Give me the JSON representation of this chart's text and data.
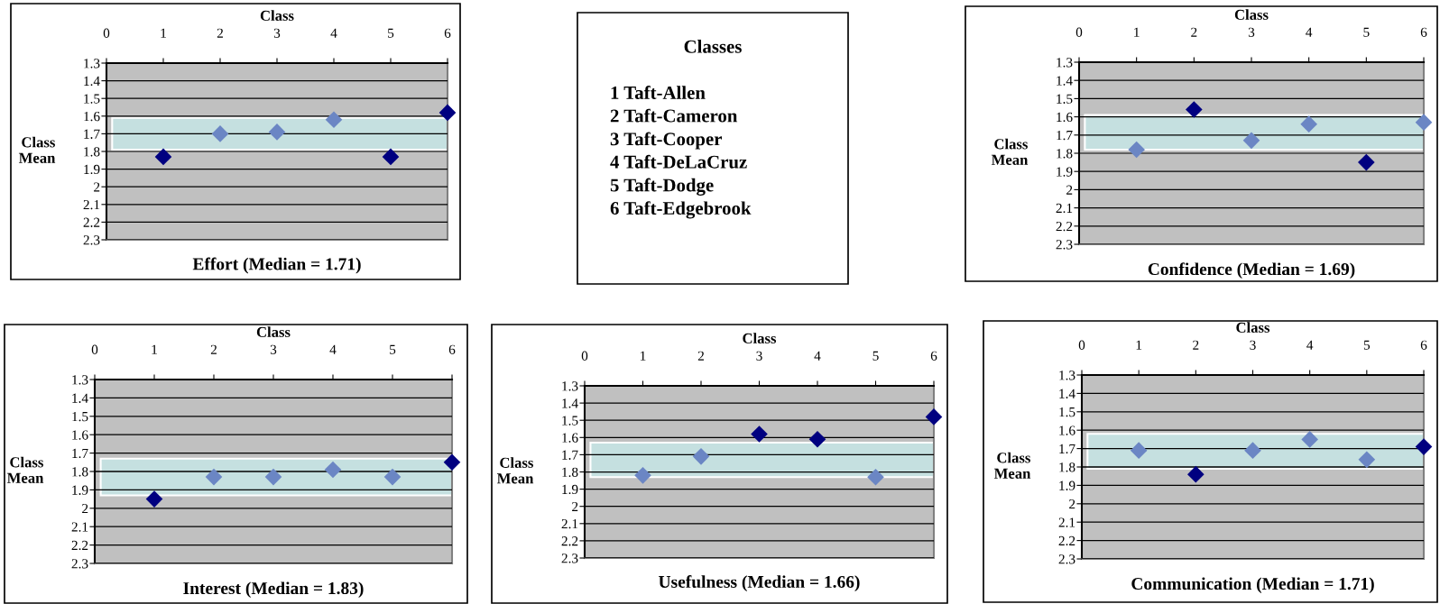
{
  "chart_data": [
    {
      "type": "scatter",
      "title": "Effort (Median = 1.71)",
      "xlabel": "Class",
      "ylabel": "Class\nMean",
      "x": [
        1,
        2,
        3,
        4,
        5,
        6
      ],
      "values": [
        1.83,
        1.7,
        1.69,
        1.62,
        1.83,
        1.58
      ],
      "colors": [
        "#000080",
        "#6b86c4",
        "#6b86c4",
        "#6b86c4",
        "#000080",
        "#000080"
      ],
      "xlim": [
        0,
        6
      ],
      "xticks": [
        0,
        1,
        2,
        3,
        4,
        5,
        6
      ],
      "ylim": [
        2.3,
        1.3
      ],
      "yticks": [
        1.3,
        1.4,
        1.5,
        1.6,
        1.7,
        1.8,
        1.9,
        2,
        2.1,
        2.2,
        2.3
      ],
      "grid": "y",
      "marker": "diamond",
      "bands": [
        {
          "axis": "y",
          "from": 1.61,
          "to": 1.79,
          "color": "#c5e0e0"
        }
      ]
    },
    {
      "type": "other",
      "title": "Classes",
      "annotations": [
        "1 Taft-Allen",
        "2 Taft-Cameron",
        "3 Taft-Cooper",
        "4 Taft-DeLaCruz",
        "5 Taft-Dodge",
        "6 Taft-Edgebrook"
      ]
    },
    {
      "type": "scatter",
      "title": "Confidence (Median = 1.69)",
      "xlabel": "Class",
      "ylabel": "Class\nMean",
      "x": [
        1,
        2,
        3,
        4,
        5,
        6
      ],
      "values": [
        1.78,
        1.56,
        1.73,
        1.64,
        1.85,
        1.63
      ],
      "colors": [
        "#6b86c4",
        "#000080",
        "#6b86c4",
        "#6b86c4",
        "#000080",
        "#6b86c4"
      ],
      "xlim": [
        0,
        6
      ],
      "xticks": [
        0,
        1,
        2,
        3,
        4,
        5,
        6
      ],
      "ylim": [
        2.3,
        1.3
      ],
      "yticks": [
        1.3,
        1.4,
        1.5,
        1.6,
        1.7,
        1.8,
        1.9,
        2,
        2.1,
        2.2,
        2.3
      ],
      "grid": "y",
      "marker": "diamond",
      "bands": [
        {
          "axis": "y",
          "from": 1.59,
          "to": 1.78,
          "color": "#c5e0e0"
        }
      ]
    },
    {
      "type": "scatter",
      "title": "Interest (Median = 1.83)",
      "xlabel": "Class",
      "ylabel": "Class\nMean",
      "x": [
        1,
        2,
        3,
        4,
        5,
        6
      ],
      "values": [
        1.95,
        1.83,
        1.83,
        1.79,
        1.83,
        1.75
      ],
      "colors": [
        "#000080",
        "#6b86c4",
        "#6b86c4",
        "#6b86c4",
        "#6b86c4",
        "#000080"
      ],
      "xlim": [
        0,
        6
      ],
      "xticks": [
        0,
        1,
        2,
        3,
        4,
        5,
        6
      ],
      "ylim": [
        2.3,
        1.3
      ],
      "yticks": [
        1.3,
        1.4,
        1.5,
        1.6,
        1.7,
        1.8,
        1.9,
        2,
        2.1,
        2.2,
        2.3
      ],
      "grid": "y",
      "marker": "diamond",
      "bands": [
        {
          "axis": "y",
          "from": 1.73,
          "to": 1.93,
          "color": "#c5e0e0"
        }
      ]
    },
    {
      "type": "scatter",
      "title": "Usefulness (Median = 1.66)",
      "xlabel": "Class",
      "ylabel": "Class\nMean",
      "x": [
        1,
        2,
        3,
        4,
        5,
        6
      ],
      "values": [
        1.82,
        1.71,
        1.58,
        1.61,
        1.83,
        1.48
      ],
      "colors": [
        "#6b86c4",
        "#6b86c4",
        "#000080",
        "#000080",
        "#6b86c4",
        "#000080"
      ],
      "xlim": [
        0,
        6
      ],
      "xticks": [
        0,
        1,
        2,
        3,
        4,
        5,
        6
      ],
      "ylim": [
        2.3,
        1.3
      ],
      "yticks": [
        1.3,
        1.4,
        1.5,
        1.6,
        1.7,
        1.8,
        1.9,
        2,
        2.1,
        2.2,
        2.3
      ],
      "grid": "y",
      "marker": "diamond",
      "bands": [
        {
          "axis": "y",
          "from": 1.63,
          "to": 1.83,
          "color": "#c5e0e0"
        }
      ]
    },
    {
      "type": "scatter",
      "title": "Communication (Median = 1.71)",
      "xlabel": "Class",
      "ylabel": "Class\nMean",
      "x": [
        1,
        2,
        3,
        4,
        5,
        6
      ],
      "values": [
        1.71,
        1.84,
        1.71,
        1.65,
        1.76,
        1.69
      ],
      "colors": [
        "#6b86c4",
        "#000080",
        "#6b86c4",
        "#6b86c4",
        "#6b86c4",
        "#000080"
      ],
      "xlim": [
        0,
        6
      ],
      "xticks": [
        0,
        1,
        2,
        3,
        4,
        5,
        6
      ],
      "ylim": [
        2.3,
        1.3
      ],
      "yticks": [
        1.3,
        1.4,
        1.5,
        1.6,
        1.7,
        1.8,
        1.9,
        2,
        2.1,
        2.2,
        2.3
      ],
      "grid": "y",
      "marker": "diamond",
      "bands": [
        {
          "axis": "y",
          "from": 1.62,
          "to": 1.81,
          "color": "#c5e0e0"
        }
      ]
    }
  ]
}
